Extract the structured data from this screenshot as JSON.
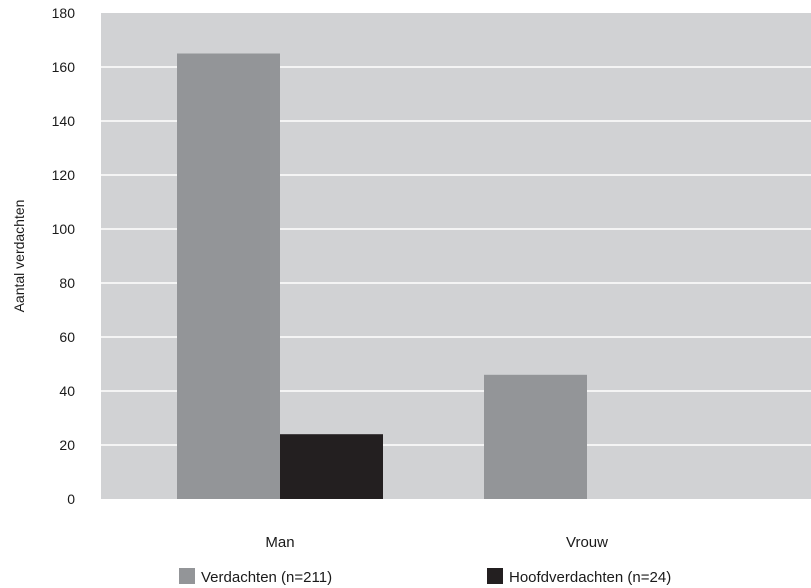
{
  "chart_data": {
    "type": "bar",
    "title": "",
    "xlabel": "",
    "ylabel": "Aantal verdachten",
    "ylim": [
      0,
      180
    ],
    "yticks": [
      0,
      20,
      40,
      60,
      80,
      100,
      120,
      140,
      160,
      180
    ],
    "categories": [
      "Man",
      "Vrouw"
    ],
    "series": [
      {
        "name": "Verdachten (n=211)",
        "color": "#939598",
        "values": [
          165,
          46
        ]
      },
      {
        "name": "Hoofdverdachten (n=24)",
        "color": "#231f20",
        "values": [
          24,
          0
        ]
      }
    ],
    "grid": true,
    "plot_background": "#d1d2d4",
    "gridline_color": "#ffffff",
    "legend_position": "bottom"
  }
}
